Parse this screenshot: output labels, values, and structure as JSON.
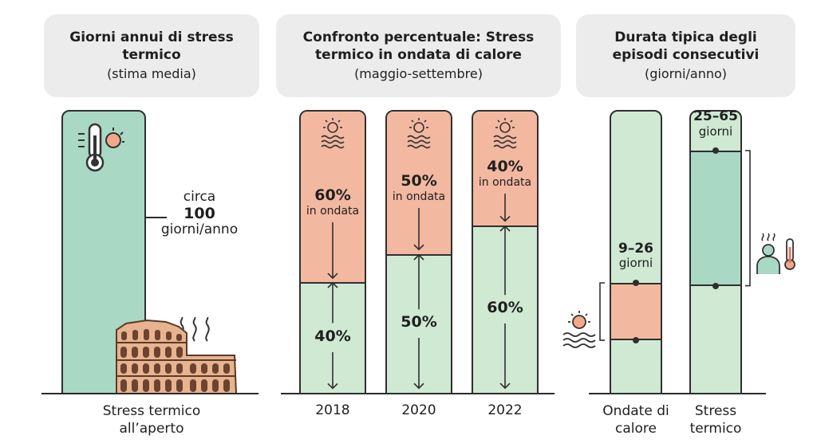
{
  "panel1": {
    "title": "Giorni annui di stress termico",
    "subtitle": "(stima media)",
    "annotation": {
      "prefix": "circa",
      "value": "100",
      "unit": "giorni/anno"
    },
    "category": "Stress termico all’aperto",
    "icons": [
      "thermometer-sun-icon",
      "colosseum-icon",
      "heat-waves-icon"
    ]
  },
  "panel2": {
    "title": "Confronto percentuale: Stress termico in ondata di calore",
    "subtitle": "(maggio-settembre)",
    "in_ondata_label": "in ondata",
    "icons": [
      "sun-waves-icon"
    ]
  },
  "panel3": {
    "title": "Durata tipica degli episodi consecutivi",
    "subtitle": "(giorni/anno)",
    "icons": [
      "sun-waves-icon",
      "person-heat-icon"
    ]
  },
  "chart_data": [
    {
      "type": "bar",
      "title": "Giorni annui di stress termico",
      "subtitle": "(stima media)",
      "categories": [
        "Stress termico all’aperto"
      ],
      "values": [
        100
      ],
      "unit": "giorni/anno"
    },
    {
      "type": "bar",
      "stacked": true,
      "title": "Confronto percentuale: Stress termico in ondata di calore",
      "subtitle": "(maggio-settembre)",
      "categories": [
        "2018",
        "2020",
        "2022"
      ],
      "series": [
        {
          "name": "in ondata",
          "values": [
            60,
            50,
            40
          ],
          "labels": [
            "60%",
            "50%",
            "40%"
          ],
          "color": "#f3b8a0"
        },
        {
          "values": [
            40,
            50,
            60
          ],
          "labels": [
            "40%",
            "50%",
            "60%"
          ],
          "color": "#cfe9d3"
        }
      ],
      "ylim": [
        0,
        100
      ]
    },
    {
      "type": "bar",
      "title": "Durata tipica degli episodi consecutivi",
      "subtitle": "(giorni/anno)",
      "categories": [
        "Ondate di calore",
        "Stress termico"
      ],
      "ranges": [
        {
          "min": 9,
          "max": 26,
          "label": "9–26",
          "unit": "giorni",
          "color": "#f3b8a0"
        },
        {
          "min": 25,
          "max": 65,
          "label": "25–65",
          "unit": "giorni",
          "color": "#a9d8c4"
        }
      ],
      "ylim": [
        0,
        80
      ]
    }
  ]
}
